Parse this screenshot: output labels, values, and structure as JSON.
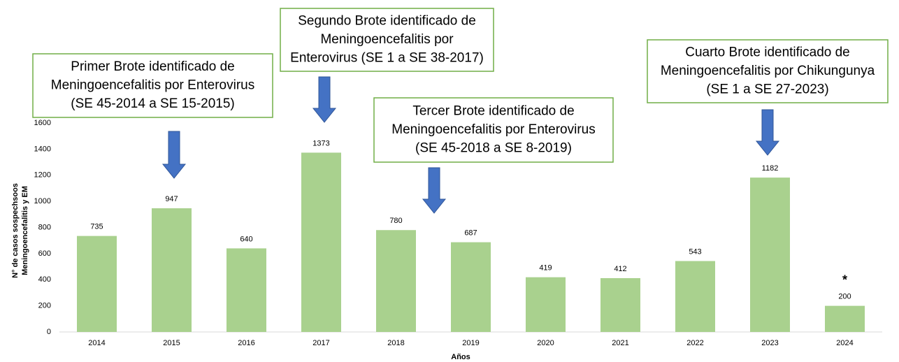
{
  "chart_data": {
    "type": "bar",
    "y_label": [
      "N° de casos sospechsoos",
      "Meningoencefalitis y EM"
    ],
    "x_label": "Años",
    "categories": [
      "2014",
      "2015",
      "2016",
      "2017",
      "2018",
      "2019",
      "2020",
      "2021",
      "2022",
      "2023",
      "2024"
    ],
    "values": [
      735,
      947,
      640,
      1373,
      780,
      687,
      419,
      412,
      543,
      1182,
      200
    ],
    "color": "#a9d18e",
    "ylim": [
      0,
      1600
    ],
    "yticks": [
      0,
      200,
      400,
      600,
      800,
      1000,
      1200,
      1400,
      1600
    ],
    "grid": false,
    "annotations": [
      [
        "Primer Brote identificado de",
        "Meningoencefalitis por Enterovirus",
        "(SE 45-2014 a SE 15-2015)"
      ],
      [
        "Segundo Brote identificado de",
        "Meningoencefalitis por",
        "Enterovirus (SE 1 a SE 38-2017)"
      ],
      [
        "Tercer Brote identificado de",
        "Meningoencefalitis por Enterovirus",
        "(SE 45-2018 a SE 8-2019)"
      ],
      [
        "Cuarto Brote identificado de",
        "Meningoencefalitis por Chikungunya",
        "(SE 1 a SE 27-2023)"
      ]
    ],
    "note_marker": "*"
  }
}
